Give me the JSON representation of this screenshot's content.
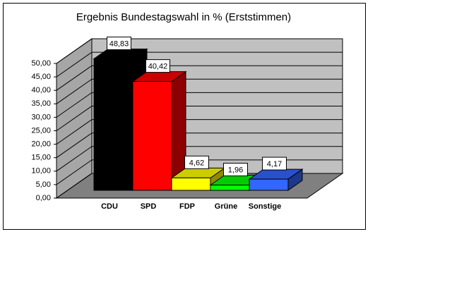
{
  "chart_data": {
    "type": "bar3d",
    "title": "Ergebnis Bundestagswahl in % (Erststimmen)",
    "categories": [
      "CDU",
      "SPD",
      "FDP",
      "Grüne",
      "Sonstige"
    ],
    "values": [
      48.83,
      40.42,
      4.62,
      1.96,
      4.17
    ],
    "value_labels": [
      "48,83",
      "40,42",
      "4,62",
      "1,96",
      "4,17"
    ],
    "colors": [
      "#000000",
      "#ff0000",
      "#ffff00",
      "#00ff00",
      "#3366ff"
    ],
    "ylim": [
      0,
      50
    ],
    "yticks": [
      {
        "value": 0,
        "label": "0,00"
      },
      {
        "value": 5,
        "label": "5,00"
      },
      {
        "value": 10,
        "label": "10,00"
      },
      {
        "value": 15,
        "label": "15,00"
      },
      {
        "value": 20,
        "label": "20,00"
      },
      {
        "value": 25,
        "label": "25,00"
      },
      {
        "value": 30,
        "label": "30,00"
      },
      {
        "value": 35,
        "label": "35,00"
      },
      {
        "value": 40,
        "label": "40,00"
      },
      {
        "value": 45,
        "label": "45,00"
      },
      {
        "value": 50,
        "label": "50,00"
      }
    ],
    "grid": true
  }
}
